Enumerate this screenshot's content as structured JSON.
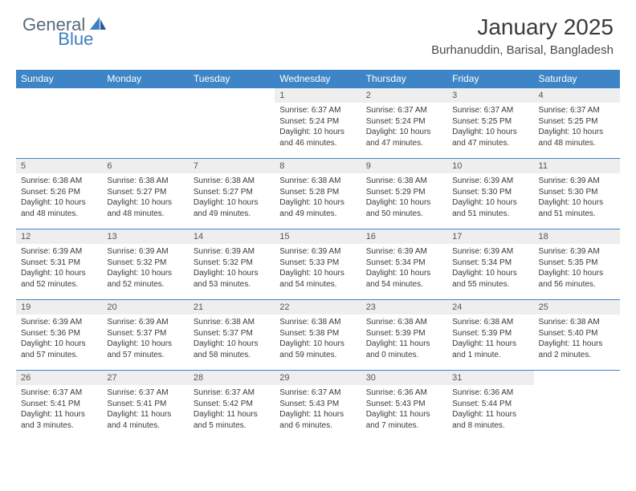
{
  "brand": {
    "general": "General",
    "blue": "Blue"
  },
  "title": "January 2025",
  "location": "Burhanuddin, Barisal, Bangladesh",
  "colors": {
    "header_bg": "#3d85c6",
    "header_text": "#ffffff",
    "daynum_bg": "#eeeeee",
    "border": "#3d85c6",
    "text": "#3a3a3a",
    "logo_gray": "#5a6a7a",
    "logo_blue": "#3d7fc0"
  },
  "weekdays": [
    "Sunday",
    "Monday",
    "Tuesday",
    "Wednesday",
    "Thursday",
    "Friday",
    "Saturday"
  ],
  "weeks": [
    [
      null,
      null,
      null,
      {
        "n": "1",
        "sr": "6:37 AM",
        "ss": "5:24 PM",
        "dl": "10 hours and 46 minutes."
      },
      {
        "n": "2",
        "sr": "6:37 AM",
        "ss": "5:24 PM",
        "dl": "10 hours and 47 minutes."
      },
      {
        "n": "3",
        "sr": "6:37 AM",
        "ss": "5:25 PM",
        "dl": "10 hours and 47 minutes."
      },
      {
        "n": "4",
        "sr": "6:37 AM",
        "ss": "5:25 PM",
        "dl": "10 hours and 48 minutes."
      }
    ],
    [
      {
        "n": "5",
        "sr": "6:38 AM",
        "ss": "5:26 PM",
        "dl": "10 hours and 48 minutes."
      },
      {
        "n": "6",
        "sr": "6:38 AM",
        "ss": "5:27 PM",
        "dl": "10 hours and 48 minutes."
      },
      {
        "n": "7",
        "sr": "6:38 AM",
        "ss": "5:27 PM",
        "dl": "10 hours and 49 minutes."
      },
      {
        "n": "8",
        "sr": "6:38 AM",
        "ss": "5:28 PM",
        "dl": "10 hours and 49 minutes."
      },
      {
        "n": "9",
        "sr": "6:38 AM",
        "ss": "5:29 PM",
        "dl": "10 hours and 50 minutes."
      },
      {
        "n": "10",
        "sr": "6:39 AM",
        "ss": "5:30 PM",
        "dl": "10 hours and 51 minutes."
      },
      {
        "n": "11",
        "sr": "6:39 AM",
        "ss": "5:30 PM",
        "dl": "10 hours and 51 minutes."
      }
    ],
    [
      {
        "n": "12",
        "sr": "6:39 AM",
        "ss": "5:31 PM",
        "dl": "10 hours and 52 minutes."
      },
      {
        "n": "13",
        "sr": "6:39 AM",
        "ss": "5:32 PM",
        "dl": "10 hours and 52 minutes."
      },
      {
        "n": "14",
        "sr": "6:39 AM",
        "ss": "5:32 PM",
        "dl": "10 hours and 53 minutes."
      },
      {
        "n": "15",
        "sr": "6:39 AM",
        "ss": "5:33 PM",
        "dl": "10 hours and 54 minutes."
      },
      {
        "n": "16",
        "sr": "6:39 AM",
        "ss": "5:34 PM",
        "dl": "10 hours and 54 minutes."
      },
      {
        "n": "17",
        "sr": "6:39 AM",
        "ss": "5:34 PM",
        "dl": "10 hours and 55 minutes."
      },
      {
        "n": "18",
        "sr": "6:39 AM",
        "ss": "5:35 PM",
        "dl": "10 hours and 56 minutes."
      }
    ],
    [
      {
        "n": "19",
        "sr": "6:39 AM",
        "ss": "5:36 PM",
        "dl": "10 hours and 57 minutes."
      },
      {
        "n": "20",
        "sr": "6:39 AM",
        "ss": "5:37 PM",
        "dl": "10 hours and 57 minutes."
      },
      {
        "n": "21",
        "sr": "6:38 AM",
        "ss": "5:37 PM",
        "dl": "10 hours and 58 minutes."
      },
      {
        "n": "22",
        "sr": "6:38 AM",
        "ss": "5:38 PM",
        "dl": "10 hours and 59 minutes."
      },
      {
        "n": "23",
        "sr": "6:38 AM",
        "ss": "5:39 PM",
        "dl": "11 hours and 0 minutes."
      },
      {
        "n": "24",
        "sr": "6:38 AM",
        "ss": "5:39 PM",
        "dl": "11 hours and 1 minute."
      },
      {
        "n": "25",
        "sr": "6:38 AM",
        "ss": "5:40 PM",
        "dl": "11 hours and 2 minutes."
      }
    ],
    [
      {
        "n": "26",
        "sr": "6:37 AM",
        "ss": "5:41 PM",
        "dl": "11 hours and 3 minutes."
      },
      {
        "n": "27",
        "sr": "6:37 AM",
        "ss": "5:41 PM",
        "dl": "11 hours and 4 minutes."
      },
      {
        "n": "28",
        "sr": "6:37 AM",
        "ss": "5:42 PM",
        "dl": "11 hours and 5 minutes."
      },
      {
        "n": "29",
        "sr": "6:37 AM",
        "ss": "5:43 PM",
        "dl": "11 hours and 6 minutes."
      },
      {
        "n": "30",
        "sr": "6:36 AM",
        "ss": "5:43 PM",
        "dl": "11 hours and 7 minutes."
      },
      {
        "n": "31",
        "sr": "6:36 AM",
        "ss": "5:44 PM",
        "dl": "11 hours and 8 minutes."
      },
      null
    ]
  ],
  "labels": {
    "sunrise": "Sunrise: ",
    "sunset": "Sunset: ",
    "daylight": "Daylight: "
  }
}
